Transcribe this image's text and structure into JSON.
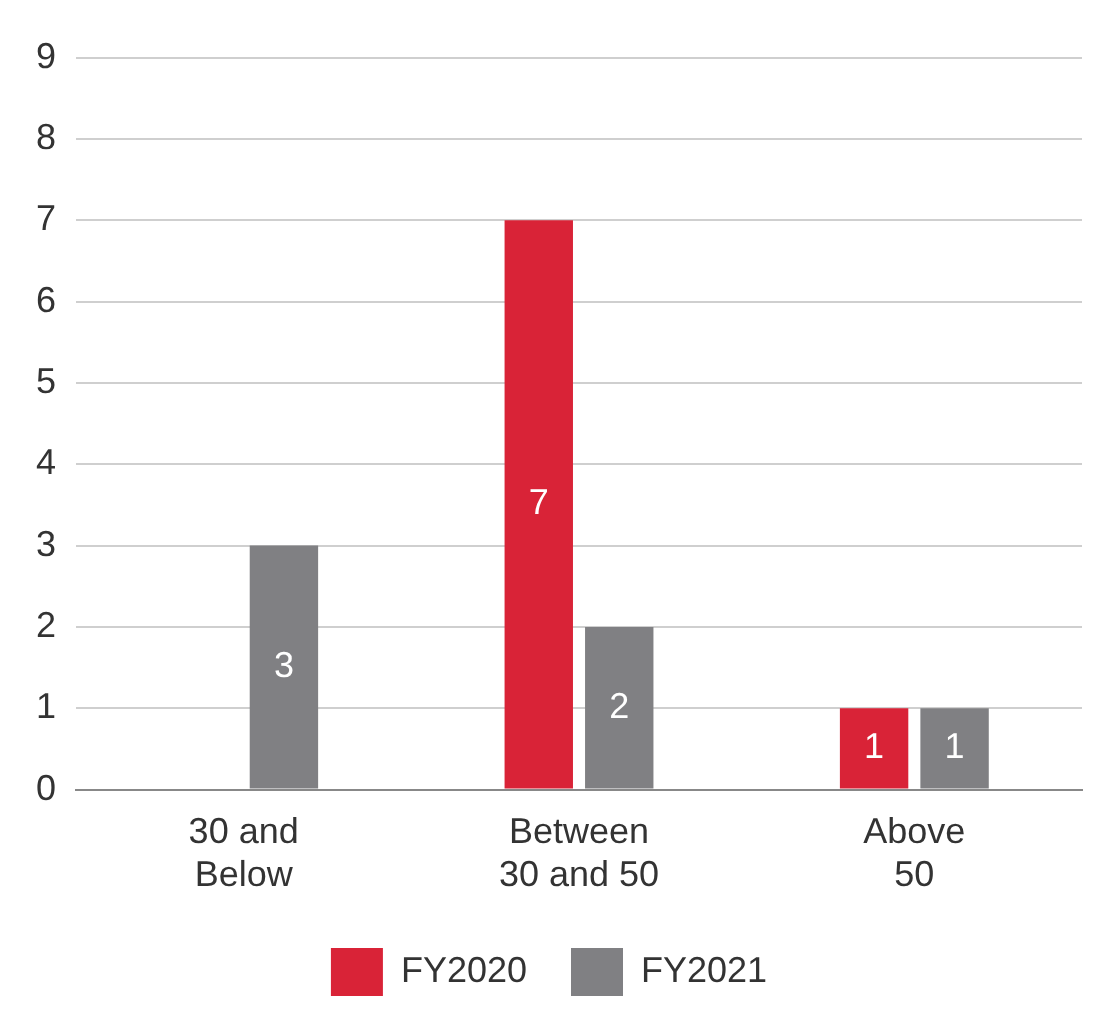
{
  "chart_data": {
    "type": "bar",
    "categories": [
      "30 and\nBelow",
      "Between\n30 and 50",
      "Above\n50"
    ],
    "series": [
      {
        "name": "FY2020",
        "color": "#d92337",
        "values": [
          null,
          7,
          1
        ]
      },
      {
        "name": "FY2021",
        "color": "#808083",
        "values": [
          3,
          2,
          1
        ]
      }
    ],
    "ylim": [
      0,
      9
    ],
    "yticks": [
      0,
      1,
      2,
      3,
      4,
      5,
      6,
      7,
      8,
      9
    ],
    "grid": "y",
    "legend": "bottom",
    "data_labels": true
  }
}
